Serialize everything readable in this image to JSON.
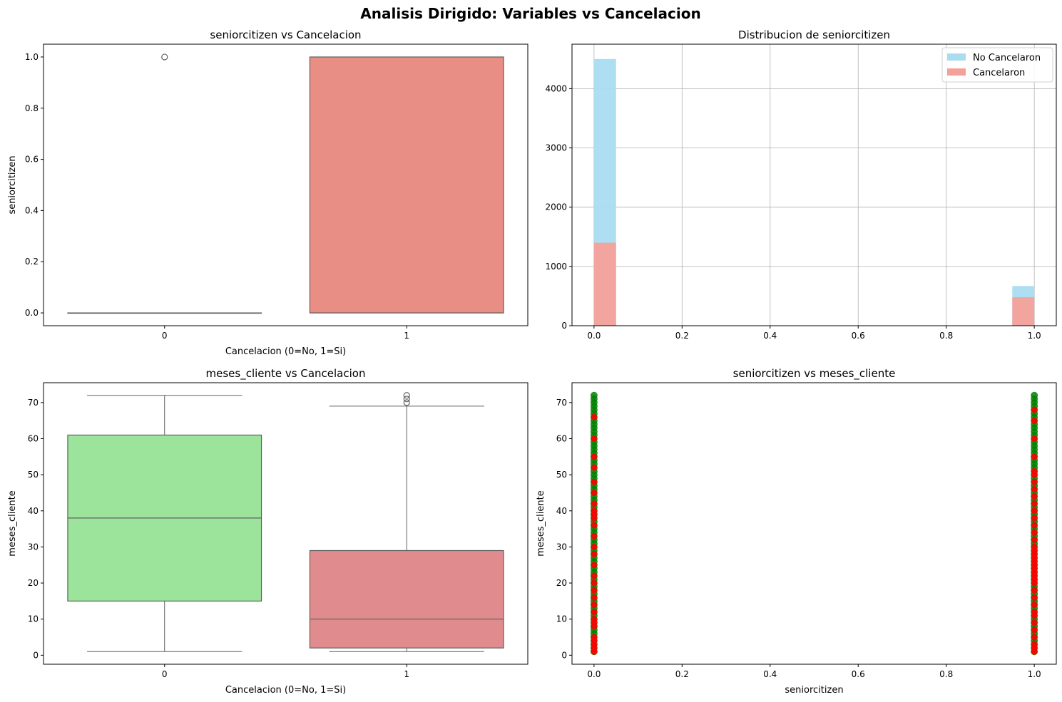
{
  "figure": {
    "title": "Analisis Dirigido: Variables vs Cancelacion"
  },
  "chart_data": [
    {
      "type": "box",
      "title": "seniorcitizen vs Cancelacion",
      "xlabel": "Cancelacion (0=No, 1=Si)",
      "ylabel": "seniorcitizen",
      "categories": [
        "0",
        "1"
      ],
      "ylim": [
        -0.05,
        1.05
      ],
      "yticks": [
        0.0,
        0.2,
        0.4,
        0.6,
        0.8,
        1.0
      ],
      "ytick_labels": [
        "0.0",
        "0.2",
        "0.4",
        "0.6",
        "0.8",
        "1.0"
      ],
      "boxes": [
        {
          "category": "0",
          "min": 0,
          "q1": 0,
          "median": 0,
          "q3": 0,
          "max": 0,
          "outliers": [
            1
          ],
          "color": "#add8e6"
        },
        {
          "category": "1",
          "min": 0,
          "q1": 0,
          "median": 0,
          "q3": 1,
          "max": 1,
          "outliers": [],
          "color": "#e98e84"
        }
      ]
    },
    {
      "type": "histogram",
      "title": "Distribucion de seniorcitizen",
      "xlim": [
        -0.05,
        1.05
      ],
      "ylim": [
        0,
        4750
      ],
      "xticks": [
        0.0,
        0.2,
        0.4,
        0.6,
        0.8,
        1.0
      ],
      "xtick_labels": [
        "0.0",
        "0.2",
        "0.4",
        "0.6",
        "0.8",
        "1.0"
      ],
      "yticks": [
        0,
        1000,
        2000,
        3000,
        4000
      ],
      "ytick_labels": [
        "0",
        "1000",
        "2000",
        "3000",
        "4000"
      ],
      "grid": true,
      "bin_width": 0.05,
      "legend": "top-right",
      "series": [
        {
          "name": "No Cancelaron",
          "color": "#aadcf0",
          "bins": [
            {
              "x0": 0.0,
              "x1": 0.05,
              "count": 4500
            },
            {
              "x0": 0.95,
              "x1": 1.0,
              "count": 670
            }
          ]
        },
        {
          "name": "Cancelaron",
          "color": "#f5a099",
          "bins": [
            {
              "x0": 0.0,
              "x1": 0.05,
              "count": 1400
            },
            {
              "x0": 0.95,
              "x1": 1.0,
              "count": 480
            }
          ]
        }
      ]
    },
    {
      "type": "box",
      "title": "meses_cliente vs Cancelacion",
      "xlabel": "Cancelacion (0=No, 1=Si)",
      "ylabel": "meses_cliente",
      "categories": [
        "0",
        "1"
      ],
      "ylim": [
        -2.5,
        75.5
      ],
      "yticks": [
        0,
        10,
        20,
        30,
        40,
        50,
        60,
        70
      ],
      "ytick_labels": [
        "0",
        "10",
        "20",
        "30",
        "40",
        "50",
        "60",
        "70"
      ],
      "boxes": [
        {
          "category": "0",
          "min": 1,
          "q1": 15,
          "median": 38,
          "q3": 61,
          "max": 72,
          "outliers": [],
          "color": "#9ce39b"
        },
        {
          "category": "1",
          "min": 1,
          "q1": 2,
          "median": 10,
          "q3": 29,
          "max": 69,
          "outliers": [
            70,
            71,
            72
          ],
          "color": "#e08b8d"
        }
      ]
    },
    {
      "type": "scatter",
      "title": "seniorcitizen vs meses_cliente",
      "xlabel": "seniorcitizen",
      "ylabel": "meses_cliente",
      "xlim": [
        -0.05,
        1.05
      ],
      "ylim": [
        -2.5,
        75.5
      ],
      "xticks": [
        0.0,
        0.2,
        0.4,
        0.6,
        0.8,
        1.0
      ],
      "xtick_labels": [
        "0.0",
        "0.2",
        "0.4",
        "0.6",
        "0.8",
        "1.0"
      ],
      "yticks": [
        0,
        10,
        20,
        30,
        40,
        50,
        60,
        70
      ],
      "ytick_labels": [
        "0",
        "10",
        "20",
        "30",
        "40",
        "50",
        "60",
        "70"
      ],
      "x_values": [
        0,
        1
      ],
      "y_range": [
        1,
        72
      ],
      "colors": {
        "base": "#008000",
        "churn": "#ff0000"
      },
      "churn_points": [
        {
          "x": 0,
          "y": [
            1,
            2,
            3,
            4,
            5,
            8,
            9,
            10,
            12,
            14,
            16,
            18,
            20,
            22,
            25,
            28,
            30,
            33,
            36,
            38,
            39,
            40,
            42,
            45,
            48,
            52,
            55,
            60,
            66
          ]
        },
        {
          "x": 1,
          "y": [
            1,
            2,
            3,
            5,
            7,
            9,
            11,
            12,
            14,
            16,
            18,
            20,
            21,
            22,
            23,
            24,
            25,
            26,
            27,
            28,
            29,
            30,
            32,
            34,
            36,
            38,
            40,
            42,
            44,
            46,
            48,
            50,
            51,
            55,
            60,
            65,
            68
          ]
        }
      ]
    }
  ]
}
